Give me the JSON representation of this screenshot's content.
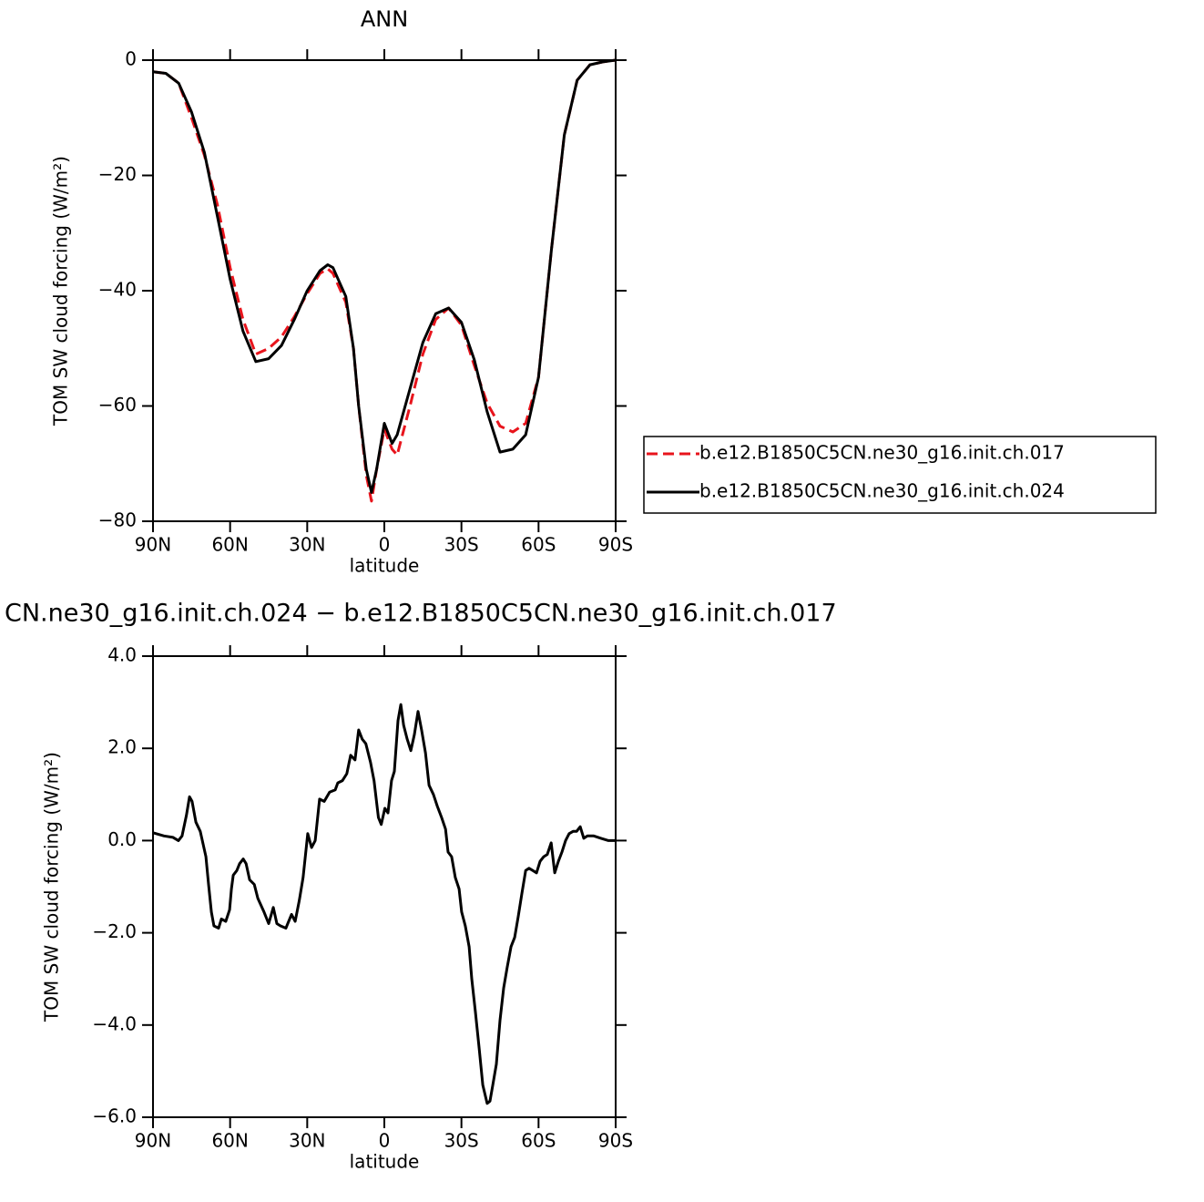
{
  "chart_data": [
    {
      "type": "line",
      "title": "ANN",
      "xlabel": "latitude",
      "ylabel": "TOM SW cloud forcing (W/m²)",
      "x": [
        90,
        85,
        80,
        75,
        70,
        65,
        60,
        55,
        50,
        45,
        40,
        35,
        30,
        25,
        22,
        20,
        15,
        12,
        10,
        7,
        5,
        3,
        0,
        -3,
        -5,
        -10,
        -15,
        -20,
        -25,
        -30,
        -35,
        -40,
        -45,
        -50,
        -55,
        -60,
        -65,
        -70,
        -75,
        -80,
        -85,
        -90
      ],
      "series": [
        {
          "name": "b.e12.B1850C5CN.ne30_g16.init.ch.017",
          "color": "#e8141c",
          "style": "dashed",
          "values": [
            -2,
            -2.3,
            -4,
            -10,
            -16.5,
            -25,
            -36,
            -45,
            -51,
            -50,
            -48,
            -44.5,
            -40.5,
            -37,
            -36.2,
            -37,
            -42,
            -50,
            -60,
            -72,
            -76.5,
            -71,
            -64,
            -67.5,
            -68.5,
            -60,
            -51,
            -45,
            -43,
            -46,
            -53,
            -59.5,
            -63.5,
            -64.5,
            -63,
            -55,
            -33,
            -13,
            -3.5,
            -0.8,
            -0.3,
            0
          ]
        },
        {
          "name": "b.e12.B1850C5CN.ne30_g16.init.ch.024",
          "color": "#000000",
          "style": "solid",
          "values": [
            -2,
            -2.3,
            -4,
            -9,
            -16,
            -27,
            -38,
            -47,
            -52.3,
            -51.8,
            -49.5,
            -45,
            -40,
            -36.5,
            -35.5,
            -36,
            -41,
            -50,
            -60,
            -71,
            -75,
            -71,
            -63,
            -66.5,
            -65,
            -57,
            -49,
            -44,
            -43,
            -45.5,
            -52,
            -61,
            -68,
            -67.5,
            -65,
            -55,
            -33,
            -13,
            -3.5,
            -0.8,
            -0.3,
            0
          ]
        }
      ],
      "xlim": [
        90,
        -90
      ],
      "xticks": [
        {
          "value": 90,
          "label": "90N"
        },
        {
          "value": 60,
          "label": "60N"
        },
        {
          "value": 30,
          "label": "30N"
        },
        0,
        {
          "value": -30,
          "label": "30S"
        },
        {
          "value": -60,
          "label": "60S"
        },
        {
          "value": -90,
          "label": "90S"
        }
      ],
      "ylim": [
        0,
        -80
      ],
      "yticks": [
        0,
        {
          "value": -20,
          "label": "−20"
        },
        {
          "value": -40,
          "label": "−40"
        },
        {
          "value": -60,
          "label": "−60"
        },
        {
          "value": -80,
          "label": "−80"
        }
      ],
      "legend": "right"
    },
    {
      "type": "line",
      "title": "CN.ne30_g16.init.ch.024 − b.e12.B1850C5CN.ne30_g16.init.ch.017",
      "xlabel": "latitude",
      "ylabel": "TOM SW cloud forcing (W/m²)",
      "x": [
        90,
        85.7,
        82.2,
        80.1,
        78.7,
        77.0,
        75.8,
        74.8,
        73.3,
        71.6,
        69.4,
        68.4,
        67.3,
        66.3,
        64.5,
        63.4,
        61.7,
        60.2,
        59.5,
        58.8,
        57.4,
        56.3,
        54.9,
        53.8,
        52.4,
        50.6,
        49.2,
        46.8,
        45.0,
        43.2,
        41.8,
        40.4,
        38.3,
        36.1,
        34.7,
        33.1,
        31.6,
        29.8,
        28.3,
        26.9,
        25.2,
        23.4,
        21.3,
        19.1,
        18.1,
        16.3,
        14.6,
        13.1,
        11.4,
        10.0,
        8.6,
        7.2,
        5.4,
        4.0,
        2.3,
        1.2,
        -0.2,
        -1.4,
        -2.8,
        -3.9,
        -5.3,
        -6.4,
        -7.5,
        -8.9,
        -10.3,
        -11.7,
        -13.1,
        -14.5,
        -16.0,
        -17.4,
        -19.1,
        -20.6,
        -22.3,
        -23.8,
        -24.8,
        -26.2,
        -27.6,
        -29.1,
        -30.1,
        -31.5,
        -33.0,
        -34.0,
        -35.4,
        -36.9,
        -38.3,
        -40.0,
        -41.1,
        -42.2,
        -43.6,
        -45.0,
        -46.4,
        -47.8,
        -49.3,
        -50.7,
        -52.1,
        -53.5,
        -55.0,
        -56.3,
        -57.8,
        -59.2,
        -60.6,
        -62.0,
        -63.4,
        -64.9,
        -66.3,
        -67.7,
        -69.1,
        -70.5,
        -71.9,
        -73.4,
        -74.8,
        -76.2,
        -77.6,
        -79.0,
        -81.5,
        -84.3,
        -87.2,
        -90
      ],
      "values": [
        0.17,
        0.1,
        0.07,
        0.0,
        0.1,
        0.55,
        0.95,
        0.85,
        0.4,
        0.2,
        -0.35,
        -0.95,
        -1.55,
        -1.85,
        -1.9,
        -1.7,
        -1.75,
        -1.5,
        -1.05,
        -0.75,
        -0.65,
        -0.5,
        -0.4,
        -0.5,
        -0.85,
        -0.95,
        -1.25,
        -1.55,
        -1.8,
        -1.45,
        -1.8,
        -1.85,
        -1.9,
        -1.6,
        -1.75,
        -1.3,
        -0.8,
        0.15,
        -0.15,
        0.0,
        0.9,
        0.85,
        1.05,
        1.1,
        1.25,
        1.3,
        1.45,
        1.85,
        1.75,
        2.4,
        2.2,
        2.1,
        1.7,
        1.3,
        0.5,
        0.35,
        0.7,
        0.6,
        1.3,
        1.5,
        2.6,
        2.95,
        2.5,
        2.2,
        1.95,
        2.3,
        2.8,
        2.4,
        1.9,
        1.2,
        1.0,
        0.75,
        0.5,
        0.25,
        -0.25,
        -0.35,
        -0.8,
        -1.05,
        -1.55,
        -1.85,
        -2.3,
        -3.0,
        -3.7,
        -4.5,
        -5.3,
        -5.7,
        -5.65,
        -5.3,
        -4.85,
        -3.9,
        -3.2,
        -2.75,
        -2.3,
        -2.1,
        -1.65,
        -1.15,
        -0.65,
        -0.6,
        -0.65,
        -0.7,
        -0.45,
        -0.35,
        -0.3,
        -0.05,
        -0.7,
        -0.45,
        -0.25,
        0.0,
        0.15,
        0.2,
        0.2,
        0.3,
        0.05,
        0.1,
        0.1,
        0.05,
        0.0,
        0.0
      ],
      "color": "#000000",
      "xlim": [
        90,
        -90
      ],
      "xticks": [
        {
          "value": 90,
          "label": "90N"
        },
        {
          "value": 60,
          "label": "60N"
        },
        {
          "value": 30,
          "label": "30N"
        },
        0,
        {
          "value": -30,
          "label": "30S"
        },
        {
          "value": -60,
          "label": "60S"
        },
        {
          "value": -90,
          "label": "90S"
        }
      ],
      "ylim": [
        4,
        -6
      ],
      "yticks": [
        {
          "value": 4,
          "label": "4.0"
        },
        {
          "value": 2,
          "label": "2.0"
        },
        {
          "value": 0,
          "label": "0.0"
        },
        {
          "value": -2,
          "label": "−2.0"
        },
        {
          "value": -4,
          "label": "−4.0"
        },
        {
          "value": -6,
          "label": "−6.0"
        }
      ]
    }
  ]
}
